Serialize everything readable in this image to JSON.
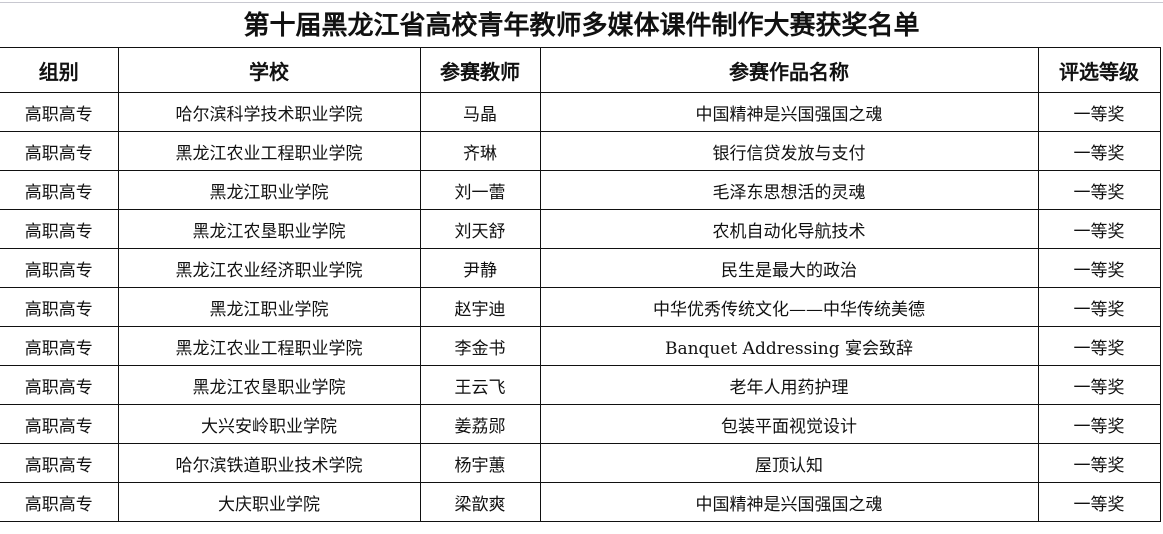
{
  "title": "第十届黑龙江省高校青年教师多媒体课件制作大赛获奖名单",
  "headers": [
    "组别",
    "学校",
    "参赛教师",
    "参赛作品名称",
    "评选等级"
  ],
  "rows": [
    [
      "高职高专",
      "哈尔滨科学技术职业学院",
      "马晶",
      "中国精神是兴国强国之魂",
      "一等奖"
    ],
    [
      "高职高专",
      "黑龙江农业工程职业学院",
      "齐琳",
      "银行信贷发放与支付",
      "一等奖"
    ],
    [
      "高职高专",
      "黑龙江职业学院",
      "刘一蕾",
      "毛泽东思想活的灵魂",
      "一等奖"
    ],
    [
      "高职高专",
      "黑龙江农垦职业学院",
      "刘天舒",
      "农机自动化导航技术",
      "一等奖"
    ],
    [
      "高职高专",
      "黑龙江农业经济职业学院",
      "尹静",
      "民生是最大的政治",
      "一等奖"
    ],
    [
      "高职高专",
      "黑龙江职业学院",
      "赵宇迪",
      "中华优秀传统文化——中华传统美德",
      "一等奖"
    ],
    [
      "高职高专",
      "黑龙江农业工程职业学院",
      "李金书",
      "Banquet Addressing 宴会致辞",
      "一等奖"
    ],
    [
      "高职高专",
      "黑龙江农垦职业学院",
      "王云飞",
      "老年人用药护理",
      "一等奖"
    ],
    [
      "高职高专",
      "大兴安岭职业学院",
      "姜荔郧",
      "包装平面视觉设计",
      "一等奖"
    ],
    [
      "高职高专",
      "哈尔滨铁道职业技术学院",
      "杨宇蕙",
      "屋顶认知",
      "一等奖"
    ],
    [
      "高职高专",
      "大庆职业学院",
      "梁歆爽",
      "中国精神是兴国强国之魂",
      "一等奖"
    ]
  ]
}
